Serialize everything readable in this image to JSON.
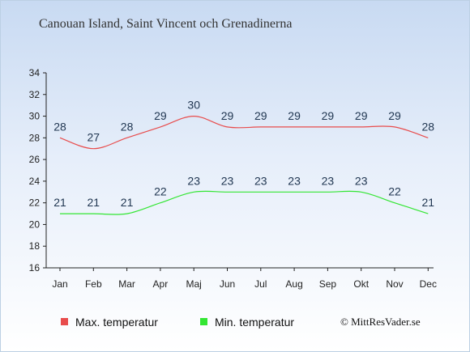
{
  "title": "Canouan Island, Saint Vincent och Grenadinerna",
  "credit": "© MittResVader.se",
  "chart_data": {
    "type": "line",
    "title": "Canouan Island, Saint Vincent och Grenadinerna",
    "categories": [
      "Jan",
      "Feb",
      "Mar",
      "Apr",
      "Maj",
      "Jun",
      "Jul",
      "Aug",
      "Sep",
      "Okt",
      "Nov",
      "Dec"
    ],
    "ylim": [
      16,
      34
    ],
    "yticks": [
      16,
      18,
      20,
      22,
      24,
      26,
      28,
      30,
      32,
      34
    ],
    "grid": false,
    "legend_position": "bottom",
    "series": [
      {
        "name": "Max. temperatur",
        "color": "#e84c4c",
        "values": [
          28,
          27,
          28,
          29,
          30,
          29,
          29,
          29,
          29,
          29,
          29,
          28
        ]
      },
      {
        "name": "Min. temperatur",
        "color": "#33e633",
        "values": [
          21,
          21,
          21,
          22,
          23,
          23,
          23,
          23,
          23,
          23,
          22,
          21
        ]
      }
    ]
  }
}
